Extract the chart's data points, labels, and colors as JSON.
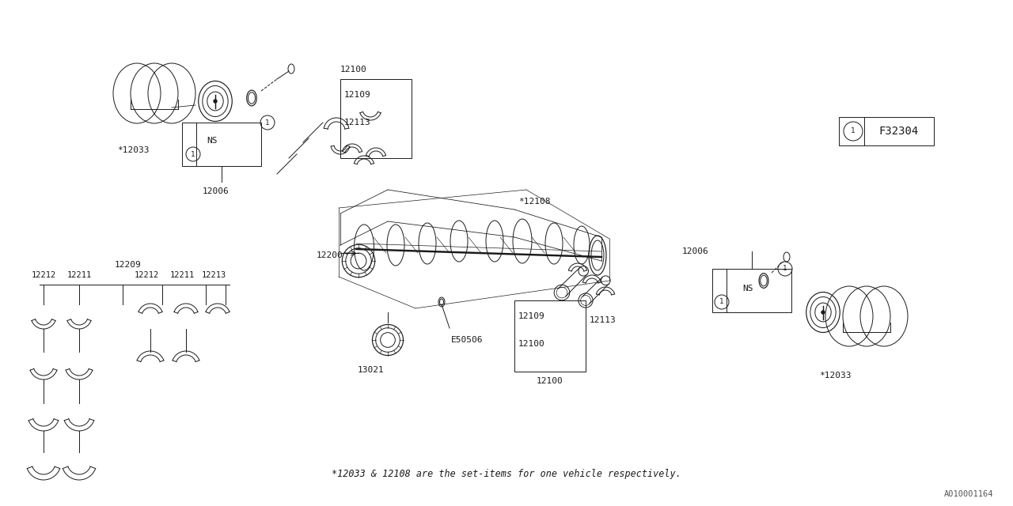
{
  "bg_color": "#ffffff",
  "line_color": "#1a1a1a",
  "fig_width": 12.8,
  "fig_height": 6.4,
  "footnote": "*12033 & 12108 are the set-items for one vehicle respectively.",
  "diagram_id": "A010001164",
  "ref_label": "F32304"
}
